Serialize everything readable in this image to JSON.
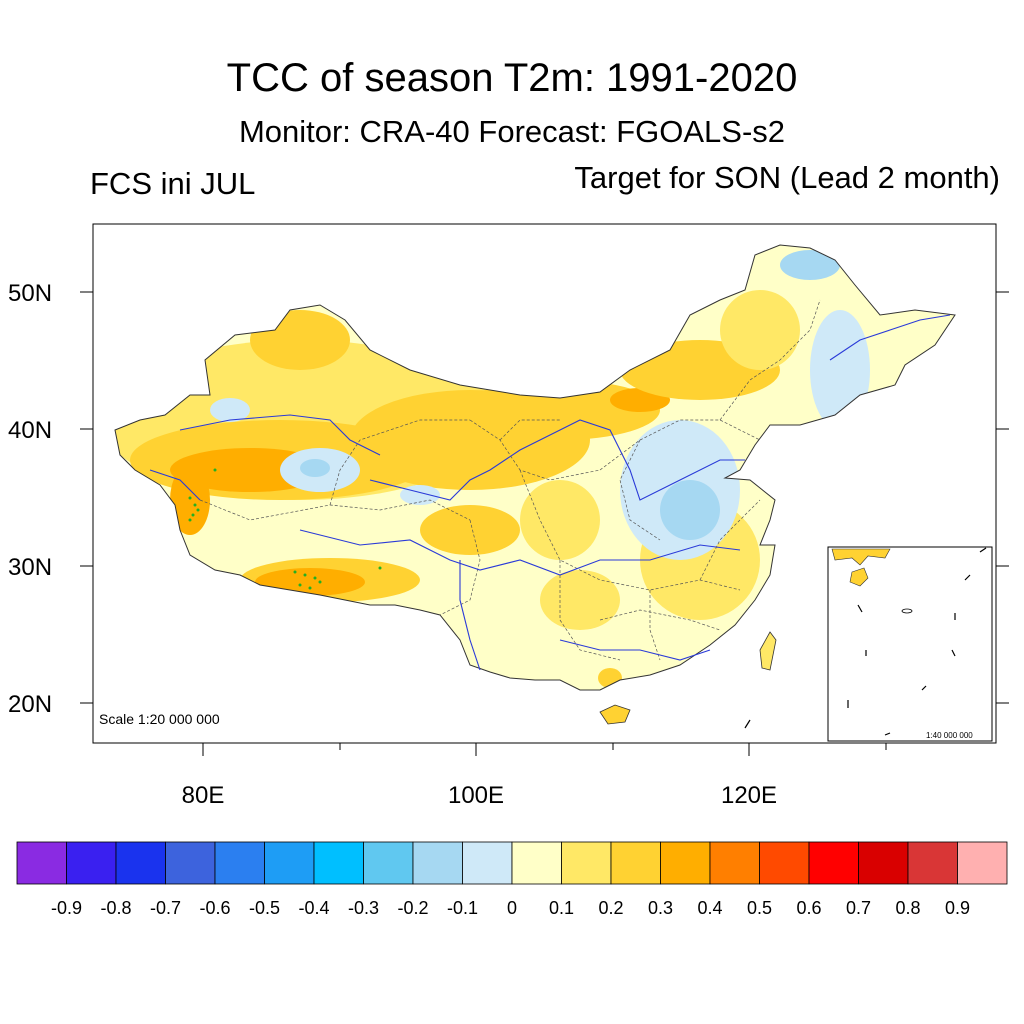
{
  "title": "TCC of season T2m: 1991-2020",
  "subtitle": "Monitor: CRA-40   Forecast: FGOALS-s2",
  "left_label": "FCS ini JUL",
  "right_label": "Target for SON (Lead 2 month)",
  "scale_note": "Scale 1:20 000 000",
  "inset_scale_note": "1:40 000 000",
  "y_axis_labels": [
    "50N",
    "40N",
    "30N",
    "20N"
  ],
  "x_axis_labels": [
    "80E",
    "100E",
    "120E"
  ],
  "colorbar": {
    "colors": [
      "#8a2be2",
      "#3a20f0",
      "#1a33ee",
      "#3d63dd",
      "#2b7ff0",
      "#1e9df5",
      "#00bfff",
      "#60c8f0",
      "#a6d8f2",
      "#cfe9f8",
      "#ffffc8",
      "#ffe866",
      "#ffd232",
      "#ffae00",
      "#ff7f00",
      "#ff4a00",
      "#ff0000",
      "#d90000",
      "#d93636",
      "#ffb0b0"
    ],
    "labels": [
      "-0.9",
      "-0.8",
      "-0.7",
      "-0.6",
      "-0.5",
      "-0.4",
      "-0.3",
      "-0.2",
      "-0.1",
      "0",
      "0.1",
      "0.2",
      "0.3",
      "0.4",
      "0.5",
      "0.6",
      "0.7",
      "0.8",
      "0.9"
    ]
  }
}
